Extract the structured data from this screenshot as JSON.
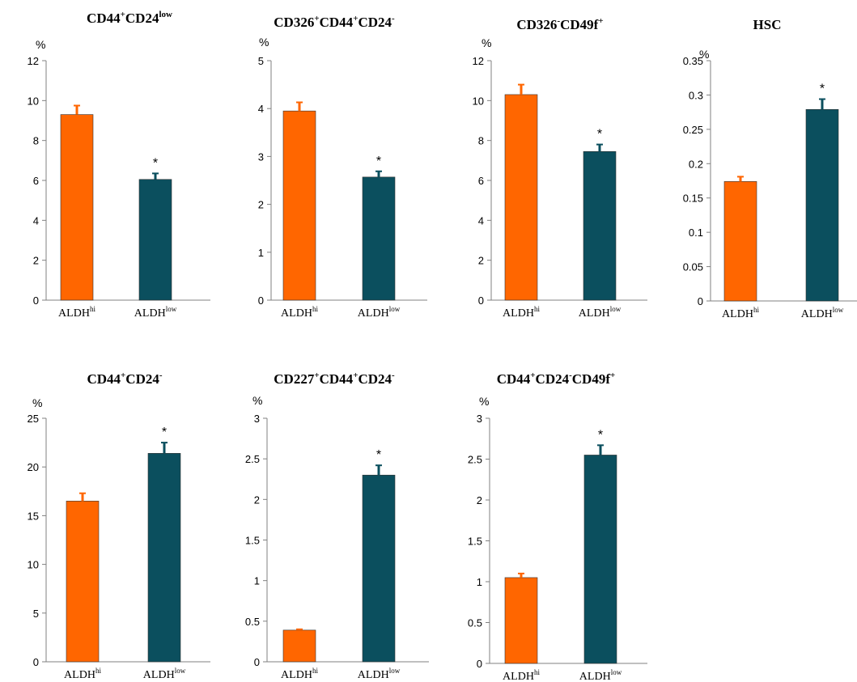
{
  "figure": {
    "colors": {
      "aldh_hi": "#ff6600",
      "aldh_low": "#0b4f5e",
      "axis": "#808080",
      "text": "#000000"
    },
    "panels": [
      {
        "title_main": "CD44",
        "title_parts": [
          [
            "CD44",
            "base"
          ],
          [
            "+",
            "sup"
          ],
          [
            "CD24",
            "base"
          ],
          [
            "low",
            "sup"
          ]
        ]
      },
      {
        "title_parts": [
          [
            "CD326",
            "base"
          ],
          [
            "+",
            "sup"
          ],
          [
            "CD44",
            "base"
          ],
          [
            "+",
            "sup"
          ],
          [
            "CD24",
            "base"
          ],
          [
            "-",
            "sup"
          ]
        ]
      },
      {
        "title_parts": [
          [
            "CD326",
            "base"
          ],
          [
            "-",
            "sup"
          ],
          [
            "CD49f",
            "base"
          ],
          [
            "+",
            "sup"
          ]
        ]
      },
      {
        "title_parts": [
          [
            "HSC",
            "base"
          ]
        ]
      },
      {
        "title_parts": [
          [
            "CD44",
            "base"
          ],
          [
            "+",
            "sup"
          ],
          [
            "CD24",
            "base"
          ],
          [
            "-",
            "sup"
          ]
        ]
      },
      {
        "title_parts": [
          [
            "CD227",
            "base"
          ],
          [
            "+",
            "sup"
          ],
          [
            "CD44",
            "base"
          ],
          [
            "+",
            "sup"
          ],
          [
            "CD24",
            "base"
          ],
          [
            "-",
            "sup"
          ]
        ]
      },
      {
        "title_parts": [
          [
            "CD44",
            "base"
          ],
          [
            "+",
            "sup"
          ],
          [
            "CD24",
            "base"
          ],
          [
            "-",
            "sup"
          ],
          [
            "CD49f",
            "base"
          ],
          [
            "+",
            "sup"
          ]
        ]
      }
    ]
  },
  "chart_data": [
    {
      "type": "bar",
      "title": "CD44+CD24low",
      "ylabel": "%",
      "categories": [
        "ALDHhi",
        "ALDHlow"
      ],
      "category_parts": [
        [
          [
            "ALDH",
            "base"
          ],
          [
            "hi",
            "sup"
          ]
        ],
        [
          [
            "ALDH",
            "base"
          ],
          [
            "low",
            "sup"
          ]
        ]
      ],
      "values": [
        9.3,
        6.05
      ],
      "errors": [
        0.45,
        0.3
      ],
      "significance": [
        "",
        "*"
      ],
      "ylim": [
        0,
        12
      ],
      "yticks": [
        "0",
        "2",
        "4",
        "6",
        "8",
        "10",
        "12"
      ],
      "grid": false
    },
    {
      "type": "bar",
      "title": "CD326+CD44+CD24-",
      "ylabel": "%",
      "categories": [
        "ALDHhi",
        "ALDHlow"
      ],
      "category_parts": [
        [
          [
            "ALDH",
            "base"
          ],
          [
            "hi",
            "sup"
          ]
        ],
        [
          [
            "ALDH",
            "base"
          ],
          [
            "low",
            "sup"
          ]
        ]
      ],
      "values": [
        3.95,
        2.57
      ],
      "errors": [
        0.18,
        0.12
      ],
      "significance": [
        "",
        "*"
      ],
      "ylim": [
        0,
        5
      ],
      "yticks": [
        "0",
        "1",
        "2",
        "3",
        "4",
        "5"
      ],
      "grid": false
    },
    {
      "type": "bar",
      "title": "CD326-CD49f+",
      "ylabel": "%",
      "categories": [
        "ALDHhi",
        "ALDHlow"
      ],
      "category_parts": [
        [
          [
            "ALDH",
            "base"
          ],
          [
            "hi",
            "sup"
          ]
        ],
        [
          [
            "ALDH",
            "base"
          ],
          [
            "low",
            "sup"
          ]
        ]
      ],
      "values": [
        10.3,
        7.45
      ],
      "errors": [
        0.5,
        0.35
      ],
      "significance": [
        "",
        "*"
      ],
      "ylim": [
        0,
        12
      ],
      "yticks": [
        "0",
        "2",
        "4",
        "6",
        "8",
        "10",
        "12"
      ],
      "grid": false
    },
    {
      "type": "bar",
      "title": "HSC",
      "ylabel": "%",
      "categories": [
        "ALDHhi",
        "ALDHlow"
      ],
      "category_parts": [
        [
          [
            "ALDH",
            "base"
          ],
          [
            "hi",
            "sup"
          ]
        ],
        [
          [
            "ALDH",
            "base"
          ],
          [
            "low",
            "sup"
          ]
        ]
      ],
      "values": [
        0.174,
        0.279
      ],
      "errors": [
        0.007,
        0.015
      ],
      "significance": [
        "",
        "*"
      ],
      "ylim": [
        0,
        0.35
      ],
      "yticks": [
        "0",
        "0.05",
        "0.1",
        "0.15",
        "0.2",
        "0.25",
        "0.3",
        "0.35"
      ],
      "grid": false
    },
    {
      "type": "bar",
      "title": "CD44+CD24-",
      "ylabel": "%",
      "categories": [
        "ALDHhi",
        "ALDHlow"
      ],
      "category_parts": [
        [
          [
            "ALDH",
            "base"
          ],
          [
            "hi",
            "sup"
          ]
        ],
        [
          [
            "ALDH",
            "base"
          ],
          [
            "low",
            "sup"
          ]
        ]
      ],
      "values": [
        16.5,
        21.4
      ],
      "errors": [
        0.8,
        1.1
      ],
      "significance": [
        "",
        "*"
      ],
      "ylim": [
        0,
        25
      ],
      "yticks": [
        "0",
        "5",
        "10",
        "15",
        "20",
        "25"
      ],
      "grid": false
    },
    {
      "type": "bar",
      "title": "CD227+CD44+CD24-",
      "ylabel": "%",
      "categories": [
        "ALDHhi",
        "ALDHlow"
      ],
      "category_parts": [
        [
          [
            "ALDH",
            "base"
          ],
          [
            "hi",
            "sup"
          ]
        ],
        [
          [
            "ALDH",
            "base"
          ],
          [
            "low",
            "sup"
          ]
        ]
      ],
      "values": [
        0.39,
        2.3
      ],
      "errors": [
        0.01,
        0.12
      ],
      "significance": [
        "",
        "*"
      ],
      "ylim": [
        0,
        3
      ],
      "yticks": [
        "0",
        "0.5",
        "1",
        "1.5",
        "2",
        "2.5",
        "3"
      ],
      "grid": false
    },
    {
      "type": "bar",
      "title": "CD44+CD24-CD49f+",
      "ylabel": "%",
      "categories": [
        "ALDHhi",
        "ALDHlow"
      ],
      "category_parts": [
        [
          [
            "ALDH",
            "base"
          ],
          [
            "hi",
            "sup"
          ]
        ],
        [
          [
            "ALDH",
            "base"
          ],
          [
            "low",
            "sup"
          ]
        ]
      ],
      "values": [
        1.05,
        2.55
      ],
      "errors": [
        0.05,
        0.12
      ],
      "significance": [
        "",
        "*"
      ],
      "ylim": [
        0,
        3
      ],
      "yticks": [
        "0",
        "0.5",
        "1",
        "1.5",
        "2",
        "2.5",
        "3"
      ],
      "grid": false
    }
  ]
}
